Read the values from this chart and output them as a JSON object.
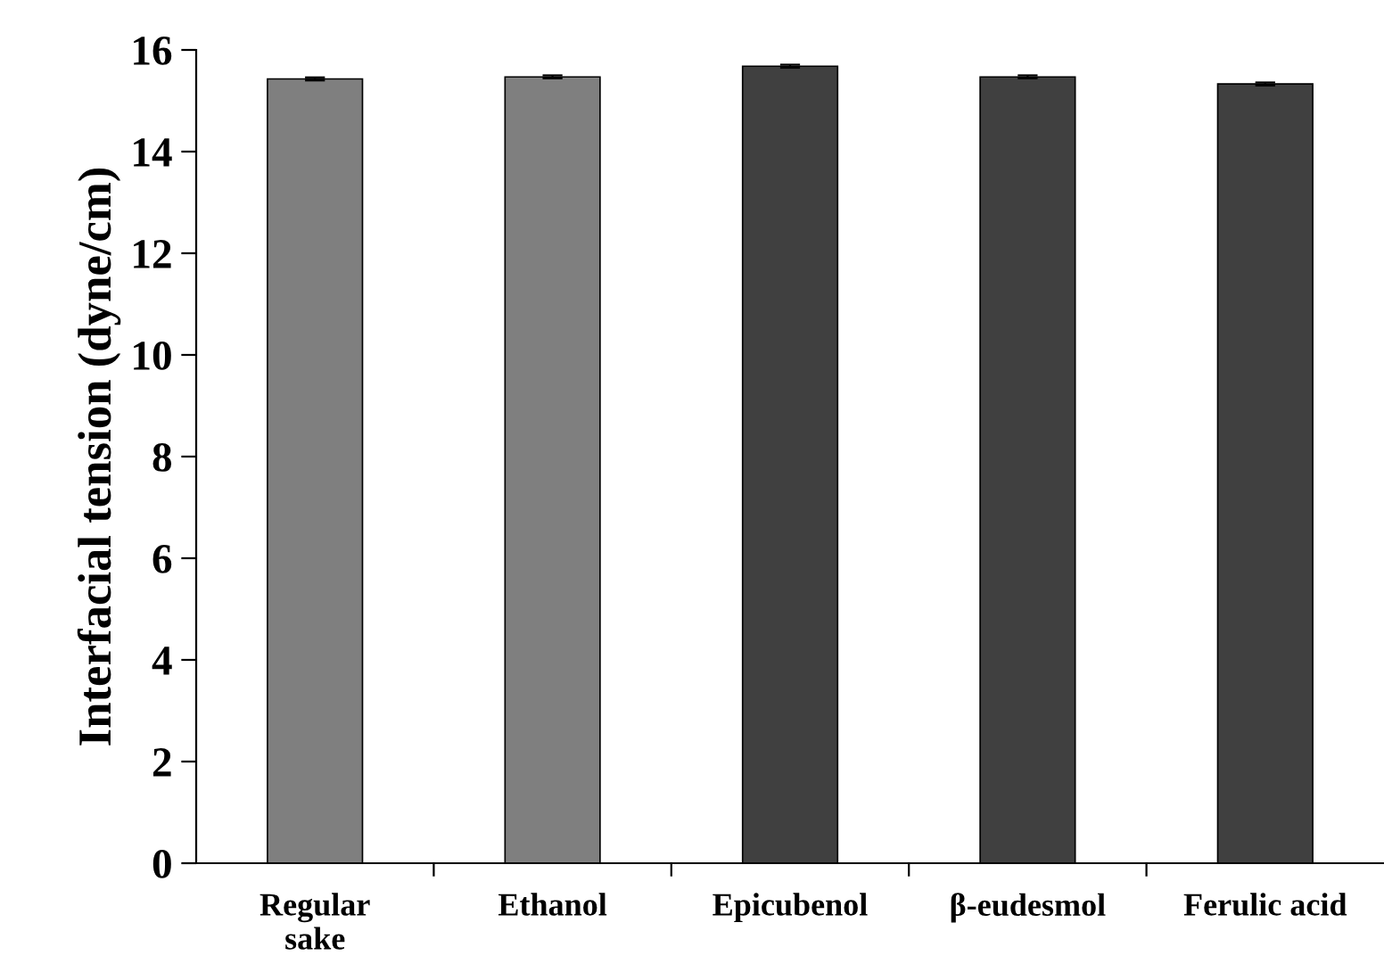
{
  "chart_data": {
    "type": "bar",
    "ylabel": "Interfacial tension (dyne/cm)",
    "categories": [
      "Regular\nsake",
      "Ethanol",
      "Epicubenol",
      "β-eudesmol",
      "Ferulic acid"
    ],
    "values": [
      15.43,
      15.47,
      15.68,
      15.47,
      15.33
    ],
    "errors": [
      0.03,
      0.03,
      0.03,
      0.03,
      0.03
    ],
    "colors": [
      "#7f7f7f",
      "#7f7f7f",
      "#404040",
      "#404040",
      "#404040"
    ],
    "ylim": [
      0,
      16
    ],
    "yticks": [
      0,
      2,
      4,
      6,
      8,
      10,
      12,
      14,
      16
    ],
    "grid": false,
    "legend": false
  }
}
